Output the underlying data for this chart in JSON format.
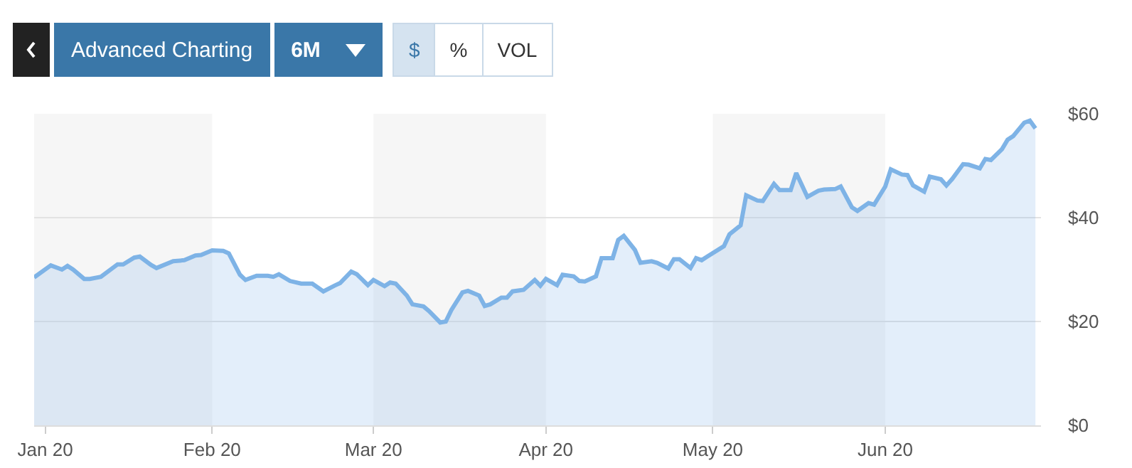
{
  "chart_data": {
    "type": "area",
    "annotations": [
      "Advanced Charting",
      "6M",
      "$",
      "%",
      "VOL"
    ],
    "x": [
      "2019-12-31",
      "2020-01-03",
      "2020-01-05",
      "2020-01-06",
      "2020-01-07",
      "2020-01-09",
      "2020-01-10",
      "2020-01-12",
      "2020-01-15",
      "2020-01-16",
      "2020-01-18",
      "2020-01-19",
      "2020-01-21",
      "2020-01-22",
      "2020-01-25",
      "2020-01-27",
      "2020-01-29",
      "2020-01-30",
      "2020-02-01",
      "2020-02-03",
      "2020-02-04",
      "2020-02-06",
      "2020-02-07",
      "2020-02-09",
      "2020-02-11",
      "2020-02-12",
      "2020-02-13",
      "2020-02-15",
      "2020-02-17",
      "2020-02-19",
      "2020-02-21",
      "2020-02-23",
      "2020-02-24",
      "2020-02-26",
      "2020-02-27",
      "2020-02-29",
      "2020-03-01",
      "2020-03-03",
      "2020-03-04",
      "2020-03-05",
      "2020-03-07",
      "2020-03-08",
      "2020-03-10",
      "2020-03-11",
      "2020-03-13",
      "2020-03-14",
      "2020-03-15",
      "2020-03-17",
      "2020-03-18",
      "2020-03-20",
      "2020-03-21",
      "2020-03-22",
      "2020-03-24",
      "2020-03-25",
      "2020-03-26",
      "2020-03-28",
      "2020-03-30",
      "2020-03-31",
      "2020-04-01",
      "2020-04-03",
      "2020-04-04",
      "2020-04-06",
      "2020-04-07",
      "2020-04-08",
      "2020-04-10",
      "2020-04-11",
      "2020-04-13",
      "2020-04-14",
      "2020-04-15",
      "2020-04-17",
      "2020-04-18",
      "2020-04-20",
      "2020-04-21",
      "2020-04-23",
      "2020-04-24",
      "2020-04-25",
      "2020-04-27",
      "2020-04-28",
      "2020-04-29",
      "2020-04-30",
      "2020-05-03",
      "2020-05-04",
      "2020-05-06",
      "2020-05-07",
      "2020-05-09",
      "2020-05-10",
      "2020-05-12",
      "2020-05-13",
      "2020-05-15",
      "2020-05-16",
      "2020-05-18",
      "2020-05-20",
      "2020-05-21",
      "2020-05-23",
      "2020-05-24",
      "2020-05-26",
      "2020-05-27",
      "2020-05-29",
      "2020-05-30",
      "2020-06-01",
      "2020-06-02",
      "2020-06-04",
      "2020-06-05",
      "2020-06-06",
      "2020-06-08",
      "2020-06-09",
      "2020-06-11",
      "2020-06-12",
      "2020-06-13",
      "2020-06-15",
      "2020-06-16",
      "2020-06-18",
      "2020-06-19",
      "2020-06-20",
      "2020-06-22",
      "2020-06-23",
      "2020-06-24",
      "2020-06-26",
      "2020-06-27",
      "2020-06-28"
    ],
    "series": [
      {
        "color": "#7eb3e6",
        "values": [
          28.5,
          30.8,
          30.0,
          30.7,
          30.0,
          28.2,
          28.2,
          28.6,
          31.0,
          31.0,
          32.3,
          32.5,
          30.9,
          30.3,
          31.6,
          31.8,
          32.7,
          32.8,
          33.7,
          33.6,
          33.1,
          29.0,
          28.0,
          28.8,
          28.8,
          28.6,
          29.1,
          27.8,
          27.3,
          27.3,
          25.8,
          26.9,
          27.4,
          29.6,
          29.1,
          27.0,
          28.0,
          26.8,
          27.5,
          27.3,
          25.0,
          23.3,
          22.9,
          22.0,
          19.8,
          20.0,
          22.2,
          25.6,
          25.9,
          25.0,
          23.0,
          23.3,
          24.6,
          24.6,
          25.8,
          26.1,
          28.0,
          26.9,
          28.2,
          27.0,
          29.0,
          28.7,
          27.8,
          27.7,
          28.7,
          32.2,
          32.2,
          35.7,
          36.5,
          33.8,
          31.3,
          31.6,
          31.3,
          30.2,
          32.0,
          32.0,
          30.3,
          32.2,
          31.8,
          32.5,
          34.5,
          36.8,
          38.5,
          44.3,
          43.3,
          43.2,
          46.5,
          45.3,
          45.3,
          48.6,
          44.0,
          45.2,
          45.4,
          45.5,
          46.0,
          42.0,
          41.3,
          42.8,
          42.5,
          46.0,
          49.3,
          48.3,
          48.2,
          46.2,
          45.0,
          47.9,
          47.4,
          46.2,
          47.4,
          50.3,
          50.2,
          49.5,
          51.3,
          51.1,
          53.2,
          55.0,
          55.7,
          58.3,
          58.7,
          57.2
        ]
      }
    ],
    "xlim": [
      "2019-12-31",
      "2020-06-29"
    ],
    "xticks": [
      {
        "value": "2020-01-02",
        "label": "Jan 20"
      },
      {
        "value": "2020-02-01",
        "label": "Feb 20"
      },
      {
        "value": "2020-03-01",
        "label": "Mar 20"
      },
      {
        "value": "2020-04-01",
        "label": "Apr 20"
      },
      {
        "value": "2020-05-01",
        "label": "May 20"
      },
      {
        "value": "2020-06-01",
        "label": "Jun 20"
      }
    ],
    "ylim": [
      0,
      60
    ],
    "yticks": [
      {
        "value": 0,
        "label": "$0"
      },
      {
        "value": 20,
        "label": "$20"
      },
      {
        "value": 40,
        "label": "$40"
      },
      {
        "value": 60,
        "label": "$60"
      }
    ],
    "bands": [
      {
        "axis": "x",
        "from": "2019-12-31",
        "to": "2020-02-01",
        "color": "#f6f6f6"
      },
      {
        "axis": "x",
        "from": "2020-03-01",
        "to": "2020-04-01",
        "color": "#f6f6f6"
      },
      {
        "axis": "x",
        "from": "2020-05-01",
        "to": "2020-06-01",
        "color": "#f6f6f6"
      }
    ],
    "grid": "y",
    "marker": "none",
    "line_style": "solid"
  }
}
